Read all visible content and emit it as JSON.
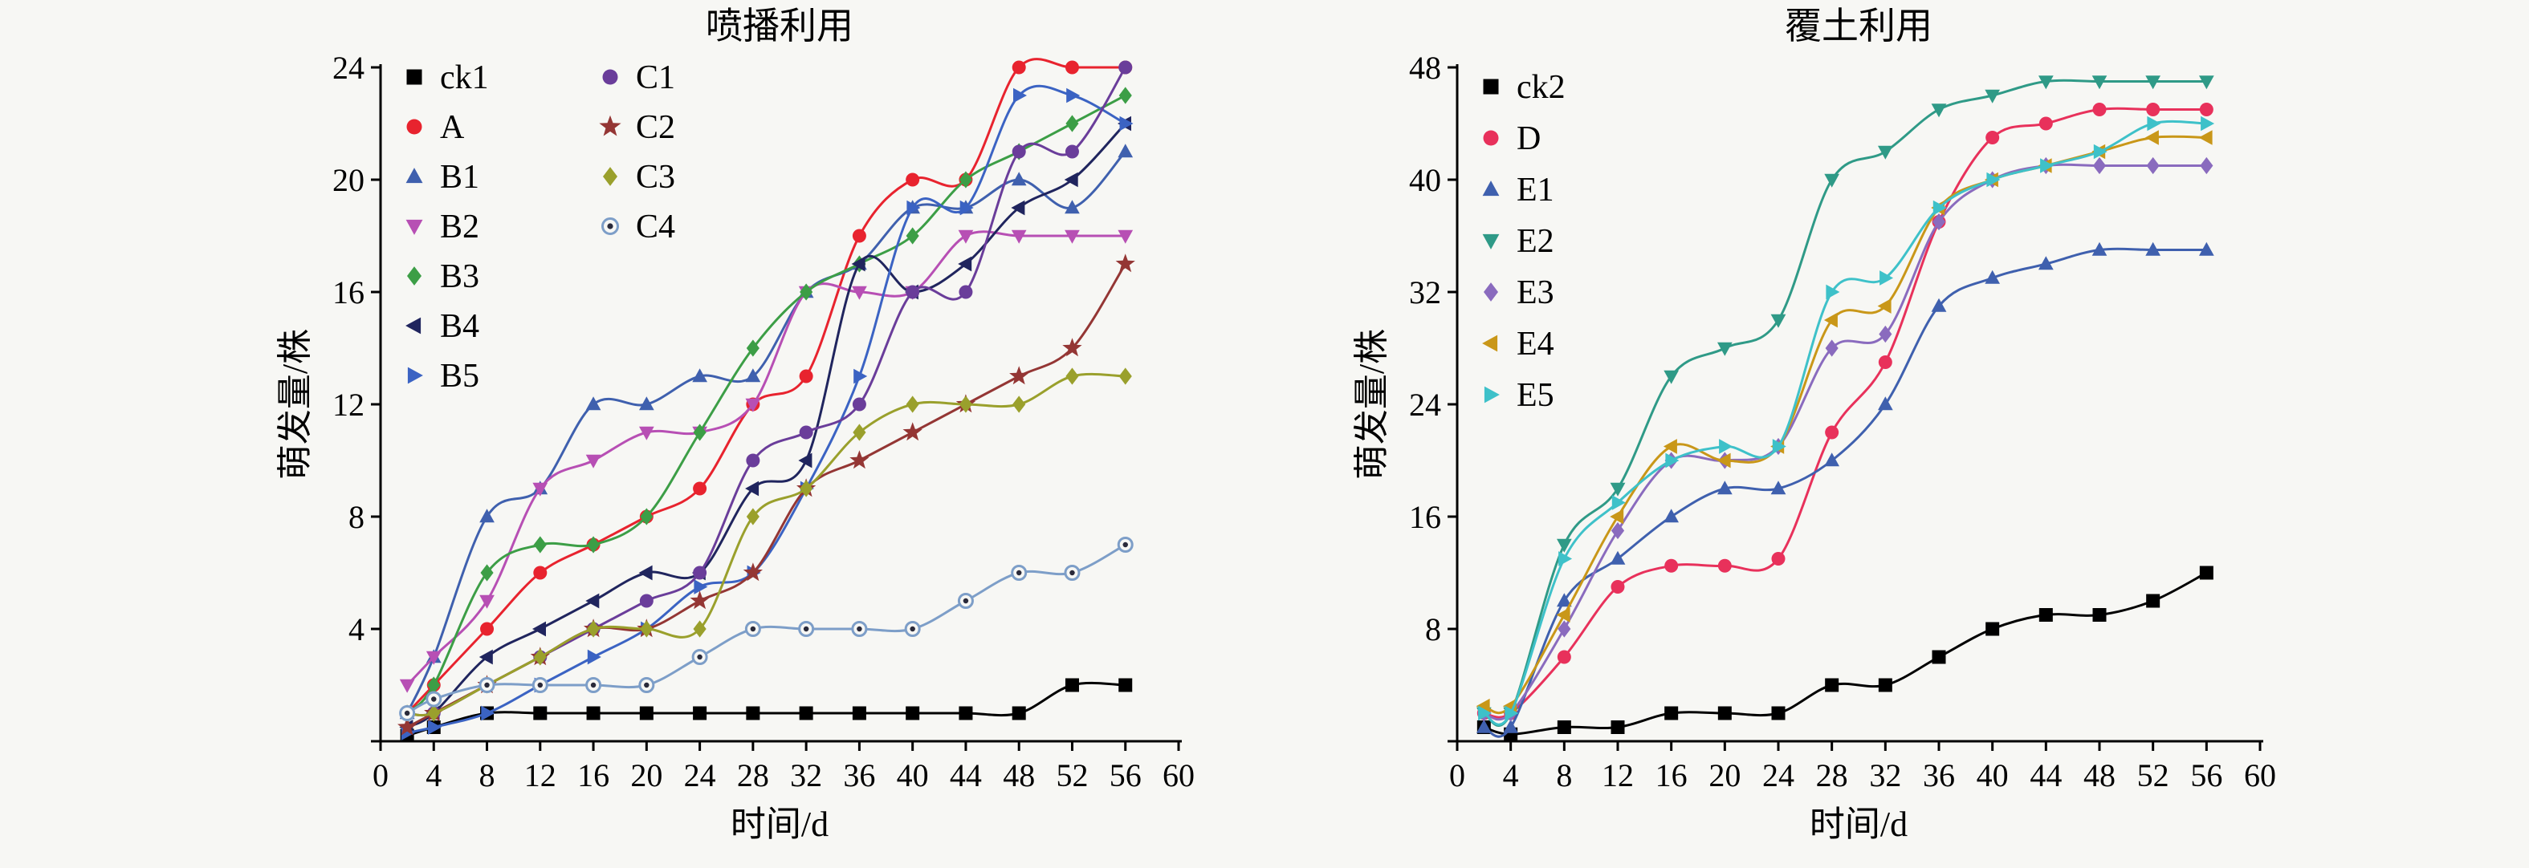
{
  "page": {
    "background": "#f7f7f4",
    "axis_color": "#000000"
  },
  "chart_data": [
    {
      "type": "line",
      "title": "喷播利用",
      "xlabel": "时间/d",
      "ylabel": "萌发量/株",
      "xlim": [
        0,
        60
      ],
      "xtick_step": 4,
      "ylim": [
        0,
        24
      ],
      "ytick_step": 4,
      "grid": false,
      "legend": {
        "position": "top-left-inside",
        "columns": 2,
        "split": 7
      },
      "x": [
        2,
        4,
        8,
        12,
        16,
        20,
        24,
        28,
        32,
        36,
        40,
        44,
        48,
        52,
        56
      ],
      "series": [
        {
          "name": "ck1",
          "color": "#000000",
          "marker": "square",
          "values": [
            0.2,
            0.5,
            1,
            1,
            1,
            1,
            1,
            1,
            1,
            1,
            1,
            1,
            1,
            2,
            2
          ]
        },
        {
          "name": "A",
          "color": "#e8232e",
          "marker": "circle",
          "values": [
            1,
            2,
            4,
            6,
            7,
            8,
            9,
            12,
            13,
            18,
            20,
            20,
            24,
            24,
            24
          ]
        },
        {
          "name": "B1",
          "color": "#3f60ae",
          "marker": "triangle-up",
          "values": [
            1,
            3,
            8,
            9,
            12,
            12,
            13,
            13,
            16,
            17,
            19,
            19,
            20,
            19,
            21
          ]
        },
        {
          "name": "B2",
          "color": "#b74fb4",
          "marker": "triangle-down",
          "values": [
            2,
            3,
            5,
            9,
            10,
            11,
            11,
            12,
            16,
            16,
            16,
            18,
            18,
            18,
            18
          ]
        },
        {
          "name": "B3",
          "color": "#3c9e46",
          "marker": "diamond",
          "values": [
            1,
            2,
            6,
            7,
            7,
            8,
            11,
            14,
            16,
            17,
            18,
            20,
            21,
            22,
            23
          ]
        },
        {
          "name": "B4",
          "color": "#20255e",
          "marker": "triangle-left",
          "values": [
            0.5,
            1,
            3,
            4,
            5,
            6,
            6,
            9,
            10,
            17,
            16,
            17,
            19,
            20,
            22
          ]
        },
        {
          "name": "B5",
          "color": "#3b63c3",
          "marker": "triangle-right",
          "values": [
            0.3,
            0.5,
            1,
            2,
            3,
            4,
            5.5,
            6,
            9,
            13,
            19,
            19,
            23,
            23,
            22
          ]
        },
        {
          "name": "C1",
          "color": "#6a3d9a",
          "marker": "circle",
          "values": [
            1,
            1,
            2,
            3,
            4,
            5,
            6,
            10,
            11,
            12,
            16,
            16,
            21,
            21,
            24
          ]
        },
        {
          "name": "C2",
          "color": "#943634",
          "marker": "star",
          "values": [
            0.5,
            1,
            2,
            3,
            4,
            4,
            5,
            6,
            9,
            10,
            11,
            12,
            13,
            14,
            17
          ]
        },
        {
          "name": "C3",
          "color": "#9aa02c",
          "marker": "diamond",
          "values": [
            1,
            1,
            2,
            3,
            4,
            4,
            4,
            8,
            9,
            11,
            12,
            12,
            12,
            13,
            13
          ]
        },
        {
          "name": "C4",
          "color": "#7d9ec8",
          "marker": "circle-open",
          "values": [
            1,
            1.5,
            2,
            2,
            2,
            2,
            3,
            4,
            4,
            4,
            4,
            5,
            6,
            6,
            7
          ]
        }
      ]
    },
    {
      "type": "line",
      "title": "覆土利用",
      "xlabel": "时间/d",
      "ylabel": "萌发量/株",
      "xlim": [
        0,
        60
      ],
      "xtick_step": 4,
      "ylim": [
        0,
        48
      ],
      "ytick_step": 8,
      "grid": false,
      "legend": {
        "position": "top-left-inside",
        "columns": 1,
        "split": 99
      },
      "x": [
        2,
        4,
        8,
        12,
        16,
        20,
        24,
        28,
        32,
        36,
        40,
        44,
        48,
        52,
        56
      ],
      "series": [
        {
          "name": "ck2",
          "color": "#000000",
          "marker": "square",
          "values": [
            1,
            0.5,
            1,
            1,
            2,
            2,
            2,
            4,
            4,
            6,
            8,
            9,
            9,
            10,
            12
          ]
        },
        {
          "name": "D",
          "color": "#e8315b",
          "marker": "circle",
          "values": [
            2,
            2,
            6,
            11,
            12.5,
            12.5,
            13,
            22,
            27,
            37,
            43,
            44,
            45,
            45,
            45
          ]
        },
        {
          "name": "E1",
          "color": "#3f60ae",
          "marker": "triangle-up",
          "values": [
            1,
            1,
            10,
            13,
            16,
            18,
            18,
            20,
            24,
            31,
            33,
            34,
            35,
            35,
            35
          ]
        },
        {
          "name": "E2",
          "color": "#2f9a87",
          "marker": "triangle-down",
          "values": [
            2,
            2,
            14,
            18,
            26,
            28,
            30,
            40,
            42,
            45,
            46,
            47,
            47,
            47,
            47
          ]
        },
        {
          "name": "E3",
          "color": "#8a6bbe",
          "marker": "diamond",
          "values": [
            2,
            2,
            8,
            15,
            20,
            20,
            21,
            28,
            29,
            37,
            40,
            41,
            41,
            41,
            41
          ]
        },
        {
          "name": "E4",
          "color": "#c99718",
          "marker": "triangle-left",
          "values": [
            2.5,
            2.5,
            9,
            16,
            21,
            20,
            21,
            30,
            31,
            38,
            40,
            41,
            42,
            43,
            43
          ]
        },
        {
          "name": "E5",
          "color": "#3ec1c9",
          "marker": "triangle-right",
          "values": [
            2,
            2,
            13,
            17,
            20,
            21,
            21,
            32,
            33,
            38,
            40,
            41,
            42,
            44,
            44
          ]
        }
      ]
    }
  ]
}
